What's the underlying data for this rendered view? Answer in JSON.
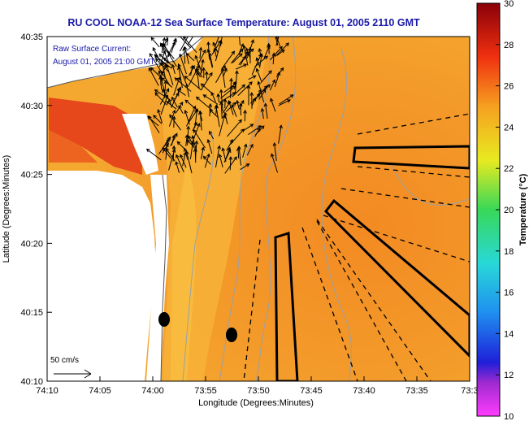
{
  "title": "RU COOL  NOAA-12  Sea Surface Temperature:  August 01, 2005 2110 GMT",
  "overlay": {
    "current_label": "Raw Surface Current:",
    "current_time": "August 01, 2005 21:00 GMT",
    "scale_label": "50 cm/s"
  },
  "axes": {
    "xlabel": "Longitude (Degrees:Minutes)",
    "ylabel": "Latitude (Degrees:Minutes)",
    "xticks": [
      "74:10",
      "74:05",
      "74:00",
      "73:55",
      "73:50",
      "73:45",
      "73:40",
      "73:35",
      "73:3"
    ],
    "yticks": [
      "40:35",
      "40:30",
      "40:25",
      "40:20",
      "40:15",
      "40:10"
    ]
  },
  "colorbar": {
    "label": "Temperature (°C)",
    "ticks": [
      "30",
      "28",
      "26",
      "24",
      "22",
      "20",
      "18",
      "16",
      "14",
      "12",
      "10"
    ],
    "min": 10,
    "max": 30
  },
  "colors": {
    "title": "#1a1aa8",
    "sst_warm": "#f07a18",
    "sst_mid": "#f39a28",
    "sst_cool": "#f8b43a",
    "sst_hot": "#e0401a",
    "land": "#ffffff",
    "vectors": "#000000"
  }
}
